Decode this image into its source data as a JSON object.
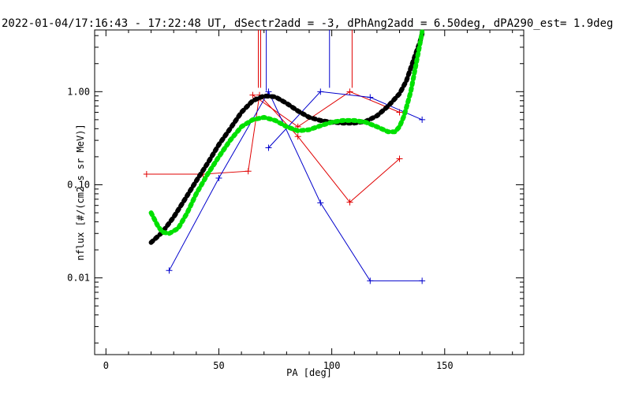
{
  "chart_data": {
    "type": "line",
    "title": "2022-01-04/17:16:43 - 17:22:48 UT, dSectr2add = -3, dPhAng2add = 6.50deg, dPA290_est=   1.9deg",
    "xlabel": "PA [deg]",
    "ylabel": "nflux [#/(cm2 s sr MeV)]",
    "xlim": [
      -5,
      185
    ],
    "ylim": [
      0.0015,
      4.6
    ],
    "yscale": "log",
    "x_ticks": [
      0,
      50,
      100,
      150
    ],
    "x_tick_labels": [
      "0",
      "50",
      "100",
      "150"
    ],
    "y_ticks": [
      0.01,
      0.1,
      1.0
    ],
    "y_tick_labels": [
      "0.01",
      "0.10",
      "1.00"
    ],
    "grid": false,
    "legend": "none",
    "colors": {
      "axes": "#000000",
      "red": "#e00000",
      "blue": "#0000cc",
      "black_fit": "#000000",
      "green_fit": "#00e000"
    },
    "series": [
      {
        "color": "red",
        "style": "line+plus",
        "x": [
          18,
          43,
          63,
          68,
          85,
          108,
          130
        ],
        "y": [
          0.13,
          0.13,
          0.14,
          0.92,
          0.33,
          0.065,
          0.19
        ]
      },
      {
        "color": "red",
        "style": "line+plus",
        "x": [
          65,
          85,
          108,
          130
        ],
        "y": [
          0.92,
          0.42,
          1.0,
          0.6
        ]
      },
      {
        "color": "blue",
        "style": "line+plus",
        "x": [
          28,
          50,
          72,
          95,
          117,
          140
        ],
        "y": [
          0.012,
          0.118,
          1.0,
          0.064,
          0.0093,
          0.0093
        ]
      },
      {
        "color": "blue",
        "style": "line+plus",
        "x": [
          72,
          95,
          117,
          140
        ],
        "y": [
          0.25,
          1.0,
          0.87,
          0.5
        ]
      },
      {
        "color": "black_fit",
        "style": "thick-dotted",
        "x": [
          20,
          25,
          30,
          35,
          40,
          45,
          50,
          55,
          60,
          65,
          70,
          75,
          80,
          85,
          90,
          95,
          100,
          105,
          110,
          115,
          120,
          125,
          130,
          133,
          135,
          137,
          139,
          140
        ],
        "y": [
          0.024,
          0.031,
          0.045,
          0.07,
          0.11,
          0.17,
          0.27,
          0.4,
          0.6,
          0.8,
          0.9,
          0.88,
          0.75,
          0.62,
          0.53,
          0.49,
          0.47,
          0.46,
          0.46,
          0.48,
          0.55,
          0.7,
          0.95,
          1.3,
          1.8,
          2.5,
          3.4,
          4.2
        ]
      },
      {
        "color": "green_fit",
        "style": "thick-dotted",
        "x": [
          20,
          23,
          25,
          28,
          32,
          36,
          40,
          45,
          50,
          55,
          60,
          65,
          70,
          75,
          80,
          85,
          90,
          95,
          100,
          105,
          110,
          115,
          120,
          125,
          128,
          130,
          132,
          135,
          137,
          139,
          140
        ],
        "y": [
          0.05,
          0.036,
          0.031,
          0.03,
          0.034,
          0.05,
          0.08,
          0.13,
          0.2,
          0.3,
          0.42,
          0.5,
          0.53,
          0.49,
          0.42,
          0.38,
          0.39,
          0.43,
          0.47,
          0.49,
          0.49,
          0.47,
          0.42,
          0.37,
          0.37,
          0.42,
          0.55,
          1.0,
          1.8,
          3.2,
          4.4
        ]
      }
    ],
    "markers": [
      {
        "color": "red",
        "x": 68,
        "y_top": 4.6,
        "y_bottom": 1.1,
        "double": true
      },
      {
        "color": "blue",
        "x": 71,
        "y_top": 4.6,
        "y_bottom": 1.02,
        "double": false
      },
      {
        "color": "blue",
        "x": 99,
        "y_top": 4.6,
        "y_bottom": 1.1,
        "double": false
      },
      {
        "color": "red",
        "x": 109,
        "y_top": 4.6,
        "y_bottom": 1.1,
        "double": false
      }
    ]
  }
}
